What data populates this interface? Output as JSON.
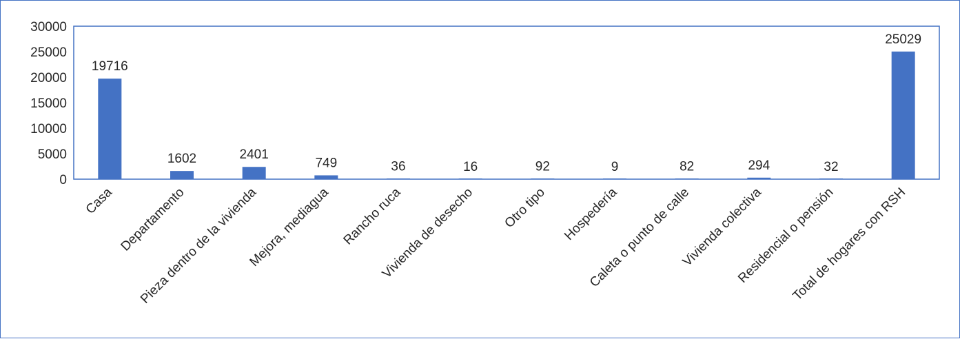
{
  "chart_data": {
    "type": "bar",
    "categories": [
      "Casa",
      "Departamento",
      "Pieza dentro de la vivienda",
      "Mejora, mediagua",
      "Rancho ruca",
      "Vivienda de desecho",
      "Otro tipo",
      "Hospedería",
      "Caleta o punto de calle",
      "Vivienda colectiva",
      "Residencial o pensión",
      "Total de hogares con RSH"
    ],
    "values": [
      19716,
      1602,
      2401,
      749,
      36,
      16,
      92,
      9,
      82,
      294,
      32,
      25029
    ],
    "data_labels": [
      "19716",
      "1602",
      "2401",
      "749",
      "36",
      "16",
      "92",
      "9",
      "82",
      "294",
      "32",
      "25029"
    ],
    "ylim": [
      0,
      30000
    ],
    "yticks": [
      0,
      5000,
      10000,
      15000,
      20000,
      25000,
      30000
    ],
    "ytick_labels": [
      "0",
      "5000",
      "10000",
      "15000",
      "20000",
      "25000",
      "30000"
    ],
    "grid": false,
    "legend": "none",
    "bar_color": "#4472C4",
    "plot_border_color": "#4472C4"
  }
}
